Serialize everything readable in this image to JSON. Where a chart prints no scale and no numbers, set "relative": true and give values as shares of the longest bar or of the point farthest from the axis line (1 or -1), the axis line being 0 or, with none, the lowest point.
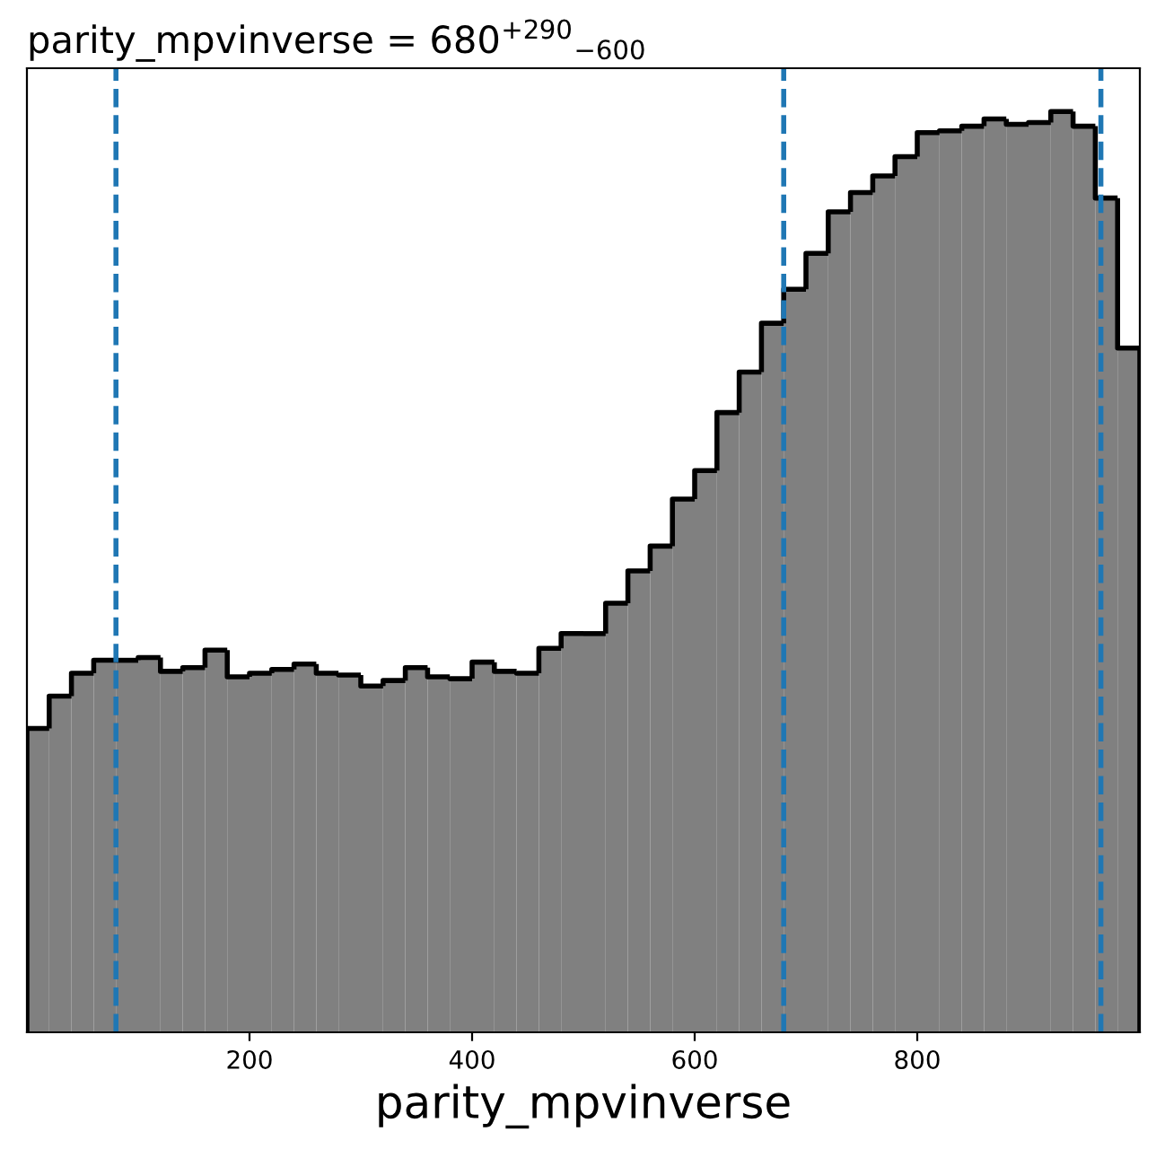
{
  "chart_data": {
    "type": "bar",
    "title": "parity_mpvinverse = 680$^{+290}$$_{−600}$",
    "xlabel": "parity_mpvinverse",
    "relative": true,
    "color": "#808080",
    "x": [
      10,
      30,
      50,
      70,
      90,
      110,
      130,
      150,
      170,
      190,
      210,
      230,
      250,
      270,
      290,
      310,
      330,
      350,
      370,
      390,
      410,
      430,
      450,
      470,
      490,
      510,
      530,
      550,
      570,
      590,
      610,
      630,
      650,
      670,
      690,
      710,
      730,
      750,
      770,
      790,
      810,
      830,
      850,
      870,
      890,
      910,
      930,
      950,
      970,
      990
    ],
    "values": [
      0.33,
      0.365,
      0.39,
      0.404,
      0.404,
      0.407,
      0.392,
      0.396,
      0.415,
      0.386,
      0.39,
      0.394,
      0.4,
      0.39,
      0.388,
      0.376,
      0.382,
      0.396,
      0.386,
      0.384,
      0.402,
      0.392,
      0.39,
      0.417,
      0.433,
      0.433,
      0.466,
      0.501,
      0.528,
      0.579,
      0.61,
      0.673,
      0.717,
      0.77,
      0.807,
      0.846,
      0.891,
      0.912,
      0.93,
      0.951,
      0.977,
      0.979,
      0.984,
      0.992,
      0.986,
      0.988,
      1,
      0.984,
      0.906,
      0.743
    ],
    "xlim": [
      0,
      1000
    ],
    "xticks": [
      200,
      400,
      600,
      800
    ],
    "tick_labels": "x",
    "grid": false,
    "ref_lines": [
      {
        "axis": "x",
        "value": 80,
        "color": "#1f77b4",
        "line_style": "dashed"
      },
      {
        "axis": "x",
        "value": 680,
        "color": "#1f77b4",
        "line_style": "dashed"
      },
      {
        "axis": "x",
        "value": 965,
        "color": "#1f77b4",
        "line_style": "dashed"
      }
    ]
  }
}
